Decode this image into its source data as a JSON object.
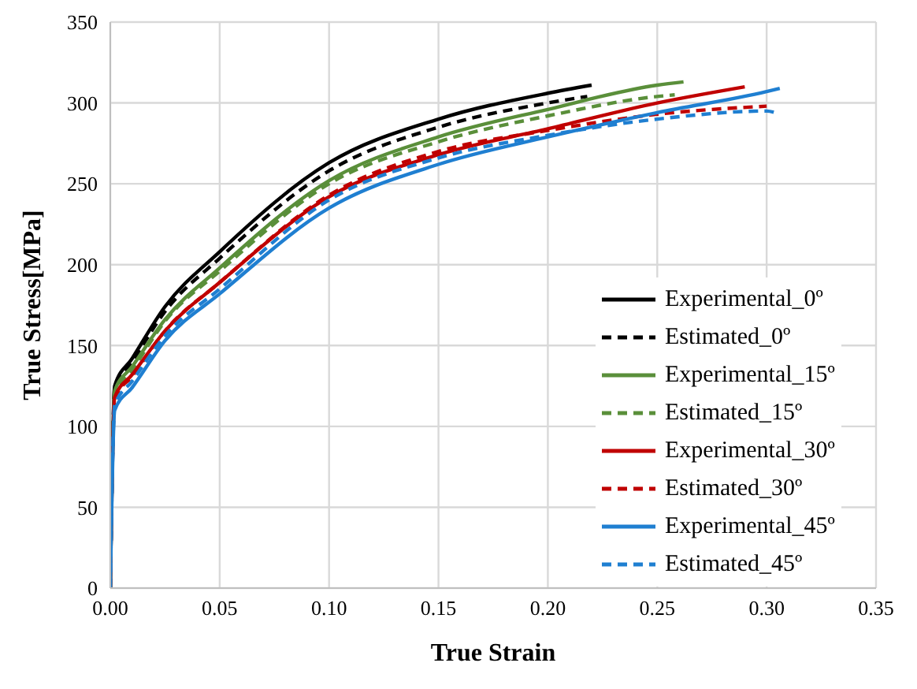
{
  "chart_data": {
    "type": "line",
    "xlabel": "True Strain",
    "ylabel": "True Stress[MPa]",
    "xlim": [
      0,
      0.35
    ],
    "xticks": [
      {
        "value": 0,
        "label": "0.00"
      },
      {
        "value": 0.05,
        "label": "0.05"
      },
      {
        "value": 0.1,
        "label": "0.10"
      },
      {
        "value": 0.15,
        "label": "0.15"
      },
      {
        "value": 0.2,
        "label": "0.20"
      },
      {
        "value": 0.25,
        "label": "0.25"
      },
      {
        "value": 0.3,
        "label": "0.30"
      },
      {
        "value": 0.35,
        "label": "0.35"
      }
    ],
    "ylim": [
      0,
      350
    ],
    "yticks": [
      0,
      50,
      100,
      150,
      200,
      250,
      300,
      350
    ],
    "grid": true,
    "legend": "bottom right",
    "marker": "none",
    "series": [
      {
        "name": "Experimental_0º",
        "color": "#000000",
        "line_style": "solid",
        "x": [
          0,
          0.002,
          0.01,
          0.025,
          0.05,
          0.1,
          0.15,
          0.2,
          0.22
        ],
        "values": [
          0,
          125,
          142,
          174,
          208,
          263,
          290,
          306,
          311
        ]
      },
      {
        "name": "Estimated_0º",
        "color": "#000000",
        "line_style": "dashed",
        "x": [
          0,
          0.002,
          0.01,
          0.025,
          0.05,
          0.1,
          0.15,
          0.2,
          0.218
        ],
        "values": [
          0,
          124,
          140,
          171,
          204,
          258,
          285,
          300,
          304
        ]
      },
      {
        "name": "Experimental_15º",
        "color": "#5a8f3a",
        "line_style": "solid",
        "x": [
          0,
          0.002,
          0.01,
          0.025,
          0.05,
          0.1,
          0.15,
          0.2,
          0.25,
          0.262
        ],
        "values": [
          0,
          122,
          137,
          166,
          198,
          252,
          279,
          296,
          311,
          313
        ]
      },
      {
        "name": "Estimated_15º",
        "color": "#5a8f3a",
        "line_style": "dashed",
        "x": [
          0,
          0.002,
          0.01,
          0.025,
          0.05,
          0.1,
          0.15,
          0.2,
          0.25,
          0.258
        ],
        "values": [
          0,
          120,
          135,
          165,
          196,
          250,
          276,
          292,
          304,
          305
        ]
      },
      {
        "name": "Experimental_30º",
        "color": "#c00000",
        "line_style": "solid",
        "x": [
          0,
          0.002,
          0.01,
          0.025,
          0.05,
          0.1,
          0.15,
          0.2,
          0.25,
          0.29
        ],
        "values": [
          0,
          118,
          132,
          159,
          189,
          242,
          268,
          284,
          300,
          310
        ]
      },
      {
        "name": "Estimated_30º",
        "color": "#c00000",
        "line_style": "dashed",
        "x": [
          0,
          0.002,
          0.01,
          0.025,
          0.05,
          0.1,
          0.15,
          0.2,
          0.25,
          0.3
        ],
        "values": [
          0,
          117,
          131,
          159,
          189,
          243,
          270,
          283,
          293,
          298
        ]
      },
      {
        "name": "Experimental_45º",
        "color": "#1f7fd1",
        "line_style": "solid",
        "x": [
          0,
          0.002,
          0.01,
          0.025,
          0.05,
          0.1,
          0.15,
          0.2,
          0.25,
          0.3,
          0.306
        ],
        "values": [
          0,
          110,
          124,
          153,
          182,
          235,
          262,
          279,
          294,
          307,
          309
        ]
      },
      {
        "name": "Estimated_45º",
        "color": "#1f7fd1",
        "line_style": "dashed",
        "x": [
          0,
          0.002,
          0.01,
          0.025,
          0.05,
          0.1,
          0.15,
          0.2,
          0.25,
          0.3,
          0.304
        ],
        "values": [
          0,
          113,
          128,
          156,
          185,
          240,
          266,
          280,
          290,
          295,
          294
        ]
      }
    ]
  }
}
